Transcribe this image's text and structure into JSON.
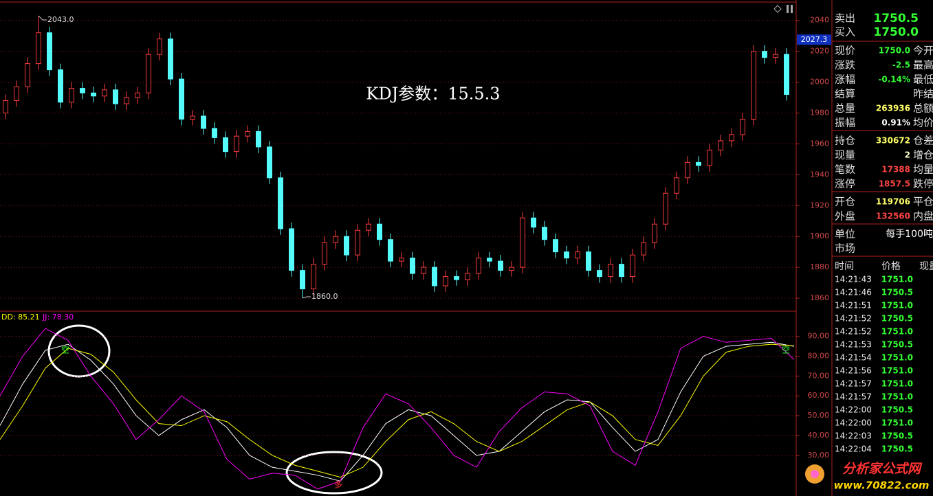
{
  "chart_data": [
    {
      "type": "candlestick",
      "title": "KDJ参数：15.5.3",
      "open": [
        1980,
        1988,
        1997,
        2012,
        2032,
        2008,
        1987,
        1996,
        1993,
        1991,
        1995,
        1986,
        1990,
        1993,
        2018,
        2028,
        2002,
        1976,
        1978,
        1970,
        1964,
        1955,
        1965,
        1968,
        1958,
        1938,
        1905,
        1878,
        1866,
        1882,
        1896,
        1900,
        1888,
        1904,
        1908,
        1898,
        1884,
        1886,
        1876,
        1880,
        1868,
        1874,
        1872,
        1876,
        1886,
        1884,
        1878,
        1880,
        1912,
        1906,
        1898,
        1890,
        1886,
        1890,
        1878,
        1874,
        1882,
        1874,
        1888,
        1896,
        1908,
        1928,
        1938,
        1948,
        1946,
        1956,
        1962,
        1966,
        1976,
        2020,
        2016,
        2018
      ],
      "high": [
        1992,
        2001,
        2016,
        2043,
        2036,
        2012,
        2000,
        2000,
        1997,
        1999,
        1999,
        1994,
        1997,
        2022,
        2032,
        2032,
        2006,
        1982,
        1982,
        1974,
        1968,
        1969,
        1972,
        1972,
        1962,
        1942,
        1909,
        1882,
        1886,
        1900,
        1904,
        1904,
        1908,
        1912,
        1912,
        1902,
        1890,
        1890,
        1884,
        1884,
        1878,
        1878,
        1880,
        1890,
        1890,
        1888,
        1884,
        1916,
        1916,
        1910,
        1902,
        1894,
        1894,
        1894,
        1882,
        1886,
        1886,
        1892,
        1900,
        1912,
        1932,
        1942,
        1952,
        1952,
        1960,
        1966,
        1970,
        1980,
        2024,
        2024,
        2022,
        2022
      ],
      "low": [
        1976,
        1984,
        1993,
        2008,
        2004,
        1983,
        1983,
        1989,
        1987,
        1987,
        1982,
        1982,
        1986,
        1989,
        2014,
        1998,
        1972,
        1972,
        1966,
        1960,
        1951,
        1951,
        1961,
        1954,
        1934,
        1901,
        1874,
        1860,
        1862,
        1878,
        1892,
        1884,
        1884,
        1900,
        1894,
        1880,
        1880,
        1872,
        1872,
        1864,
        1864,
        1868,
        1868,
        1872,
        1880,
        1874,
        1874,
        1876,
        1902,
        1894,
        1886,
        1882,
        1882,
        1874,
        1870,
        1870,
        1870,
        1870,
        1884,
        1892,
        1904,
        1924,
        1934,
        1942,
        1942,
        1952,
        1958,
        1962,
        1972,
        2012,
        2012,
        1988
      ],
      "close": [
        1988,
        1997,
        2012,
        2032,
        2008,
        1987,
        1996,
        1993,
        1991,
        1995,
        1986,
        1990,
        1993,
        2018,
        2028,
        2002,
        1976,
        1978,
        1970,
        1964,
        1955,
        1965,
        1968,
        1958,
        1938,
        1905,
        1878,
        1866,
        1882,
        1896,
        1900,
        1888,
        1904,
        1908,
        1898,
        1884,
        1886,
        1876,
        1880,
        1868,
        1874,
        1872,
        1876,
        1886,
        1884,
        1878,
        1880,
        1912,
        1906,
        1898,
        1890,
        1886,
        1890,
        1878,
        1874,
        1882,
        1874,
        1888,
        1896,
        1908,
        1928,
        1938,
        1948,
        1946,
        1956,
        1962,
        1966,
        1976,
        2020,
        2016,
        2018,
        1992
      ],
      "up_color": "#ff3c3c",
      "down_color": "#54fcfc",
      "ylim": [
        1852,
        2051
      ],
      "yticks": [
        1860,
        1880,
        1900,
        1920,
        1940,
        1960,
        1980,
        2000,
        2020,
        2040
      ],
      "grid": true,
      "annotations": [
        {
          "value": 2043,
          "label": "2043.0"
        },
        {
          "value": 1860,
          "label": "1860.0"
        }
      ],
      "price_marker": {
        "value": 2027.3,
        "label": "2027.3"
      }
    },
    {
      "type": "line",
      "series": [
        {
          "color": "#ffffff",
          "values": [
            45,
            66,
            83,
            86,
            78,
            66,
            50,
            40,
            48,
            53,
            44,
            30,
            24,
            22,
            20,
            17,
            30,
            46,
            53,
            50,
            40,
            30,
            32,
            42,
            52,
            58,
            57,
            44,
            32,
            38,
            62,
            80,
            85,
            86,
            87,
            85
          ]
        },
        {
          "name": "DD: 85.21",
          "color": "#ffff00",
          "values": [
            38,
            55,
            74,
            84,
            81,
            72,
            58,
            46,
            45,
            50,
            47,
            38,
            30,
            25,
            22,
            19,
            24,
            37,
            48,
            52,
            46,
            37,
            32,
            37,
            45,
            53,
            57,
            50,
            38,
            35,
            50,
            70,
            82,
            85,
            86,
            85.21
          ]
        },
        {
          "name": "JJ: 78.30",
          "color": "#ff00ff",
          "values": [
            60,
            80,
            94,
            88,
            70,
            56,
            38,
            48,
            60,
            52,
            28,
            18,
            21,
            20,
            13,
            17,
            44,
            61,
            56,
            44,
            30,
            24,
            42,
            54,
            62,
            61,
            55,
            32,
            25,
            52,
            84,
            90,
            87,
            88,
            89,
            78.3
          ]
        }
      ],
      "ylim": [
        9.5,
        102
      ],
      "yticks": [
        {
          "value": 30,
          "label": "30.00"
        },
        {
          "value": 40,
          "label": "40.00"
        },
        {
          "value": 50,
          "label": "50.00"
        },
        {
          "value": 60,
          "label": "60.00"
        },
        {
          "value": 70,
          "label": "70.00"
        },
        {
          "value": 80,
          "label": "80.00"
        },
        {
          "value": 90,
          "label": "90.00"
        }
      ],
      "grid": true,
      "signals": [
        {
          "label": "空",
          "color": "#33ff33"
        },
        {
          "label": "多",
          "color": "#ff3333"
        },
        {
          "label": "空",
          "color": "#33ff33"
        }
      ]
    }
  ],
  "quote_panel": {
    "bid_ask": [
      {
        "label": "卖出",
        "value": "1750.5"
      },
      {
        "label": "买入",
        "value": "1750.0"
      }
    ],
    "groups": [
      [
        {
          "label": "现价",
          "value": "1750.0",
          "color": "#33ff33",
          "label2": "今开"
        },
        {
          "label": "涨跌",
          "value": "-2.5",
          "color": "#33ff33",
          "label2": "最高"
        },
        {
          "label": "涨幅",
          "value": "-0.14%",
          "color": "#33ff33",
          "label2": "最低"
        },
        {
          "label": "结算",
          "label2": "昨结"
        },
        {
          "label": "总量",
          "value": "263936",
          "color": "#ffff66",
          "label2": "总额"
        },
        {
          "label": "振幅",
          "value": "0.91%",
          "color": "#ffffff",
          "label2": "均价"
        }
      ],
      [
        {
          "label": "持仓",
          "value": "330672",
          "color": "#ffff66",
          "label2": "仓差"
        },
        {
          "label": "现量",
          "value": "2",
          "color": "#ffffcc",
          "label2": "增仓"
        },
        {
          "label": "笔数",
          "value": "17388",
          "color": "#ff4444",
          "label2": "均量"
        },
        {
          "label": "涨停",
          "value": "1857.5",
          "color": "#ff4444",
          "label2": "跌停"
        }
      ],
      [
        {
          "label": "开仓",
          "value": "119706",
          "color": "#ffff66",
          "label2": "平仓"
        },
        {
          "label": "外盘",
          "value": "132560",
          "color": "#ff4444",
          "label2": "内盘"
        }
      ],
      [
        {
          "label": "单位",
          "value": "每手100吨",
          "color": "#ffffff"
        },
        {
          "label": "市场"
        }
      ]
    ],
    "trade_header": [
      "时间",
      "价格",
      "现量"
    ],
    "trades": [
      [
        "14:21:43",
        "1751.0"
      ],
      [
        "14:21:46",
        "1750.5"
      ],
      [
        "14:21:51",
        "1751.0"
      ],
      [
        "14:21:52",
        "1750.5"
      ],
      [
        "14:21:52",
        "1751.0"
      ],
      [
        "14:21:53",
        "1750.5"
      ],
      [
        "14:21:54",
        "1751.0"
      ],
      [
        "14:21:56",
        "1751.0"
      ],
      [
        "14:21:57",
        "1751.0"
      ],
      [
        "14:21:57",
        "1751.0"
      ],
      [
        "14:22:00",
        "1750.5"
      ],
      [
        "14:22:00",
        "1751.0"
      ],
      [
        "14:22:03",
        "1750.5"
      ],
      [
        "14:22:04",
        "1750.5"
      ]
    ],
    "trade_color": "#33ff33"
  },
  "watermark": {
    "name": "分析家公式网",
    "url": "www.70822.com"
  }
}
